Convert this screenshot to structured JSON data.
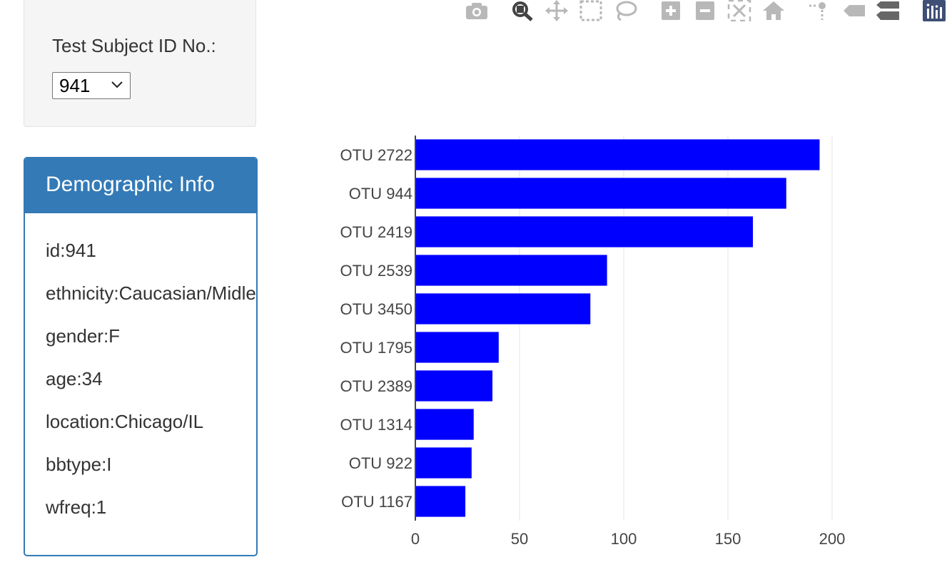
{
  "selector": {
    "label": "Test Subject ID No.:",
    "selected_value": "941"
  },
  "panel": {
    "title": "Demographic Info",
    "lines": [
      "id:941",
      "ethnicity:Caucasian/Midleastern",
      "gender:F",
      "age:34",
      "location:Chicago/IL",
      "bbtype:I",
      "wfreq:1"
    ]
  },
  "modebar": {
    "icons": [
      "camera-icon",
      "zoom-icon",
      "pan-icon",
      "box-select-icon",
      "lasso-select-icon",
      "zoom-in-icon",
      "zoom-out-icon",
      "autoscale-icon",
      "reset-axes-icon",
      "spike-lines-icon",
      "hover-closest-icon",
      "hover-compare-icon",
      "plotly-logo-icon"
    ]
  },
  "colors": {
    "bar": "#0000ff",
    "panel_accent": "#337ab7",
    "well_background": "#f5f5f5",
    "modebar_icon": "#b8b8b8",
    "modebar_active": "#444444"
  },
  "chart_data": {
    "type": "bar",
    "orientation": "horizontal",
    "categories": [
      "OTU 2722",
      "OTU 944",
      "OTU 2419",
      "OTU 2539",
      "OTU 3450",
      "OTU 1795",
      "OTU 2389",
      "OTU 1314",
      "OTU 922",
      "OTU 1167"
    ],
    "values": [
      194,
      178,
      162,
      92,
      84,
      40,
      37,
      28,
      27,
      24
    ],
    "xlim": [
      0,
      200
    ],
    "xticks": [
      0,
      50,
      100,
      150,
      200
    ],
    "title": "",
    "xlabel": "",
    "ylabel": "",
    "grid": true
  }
}
